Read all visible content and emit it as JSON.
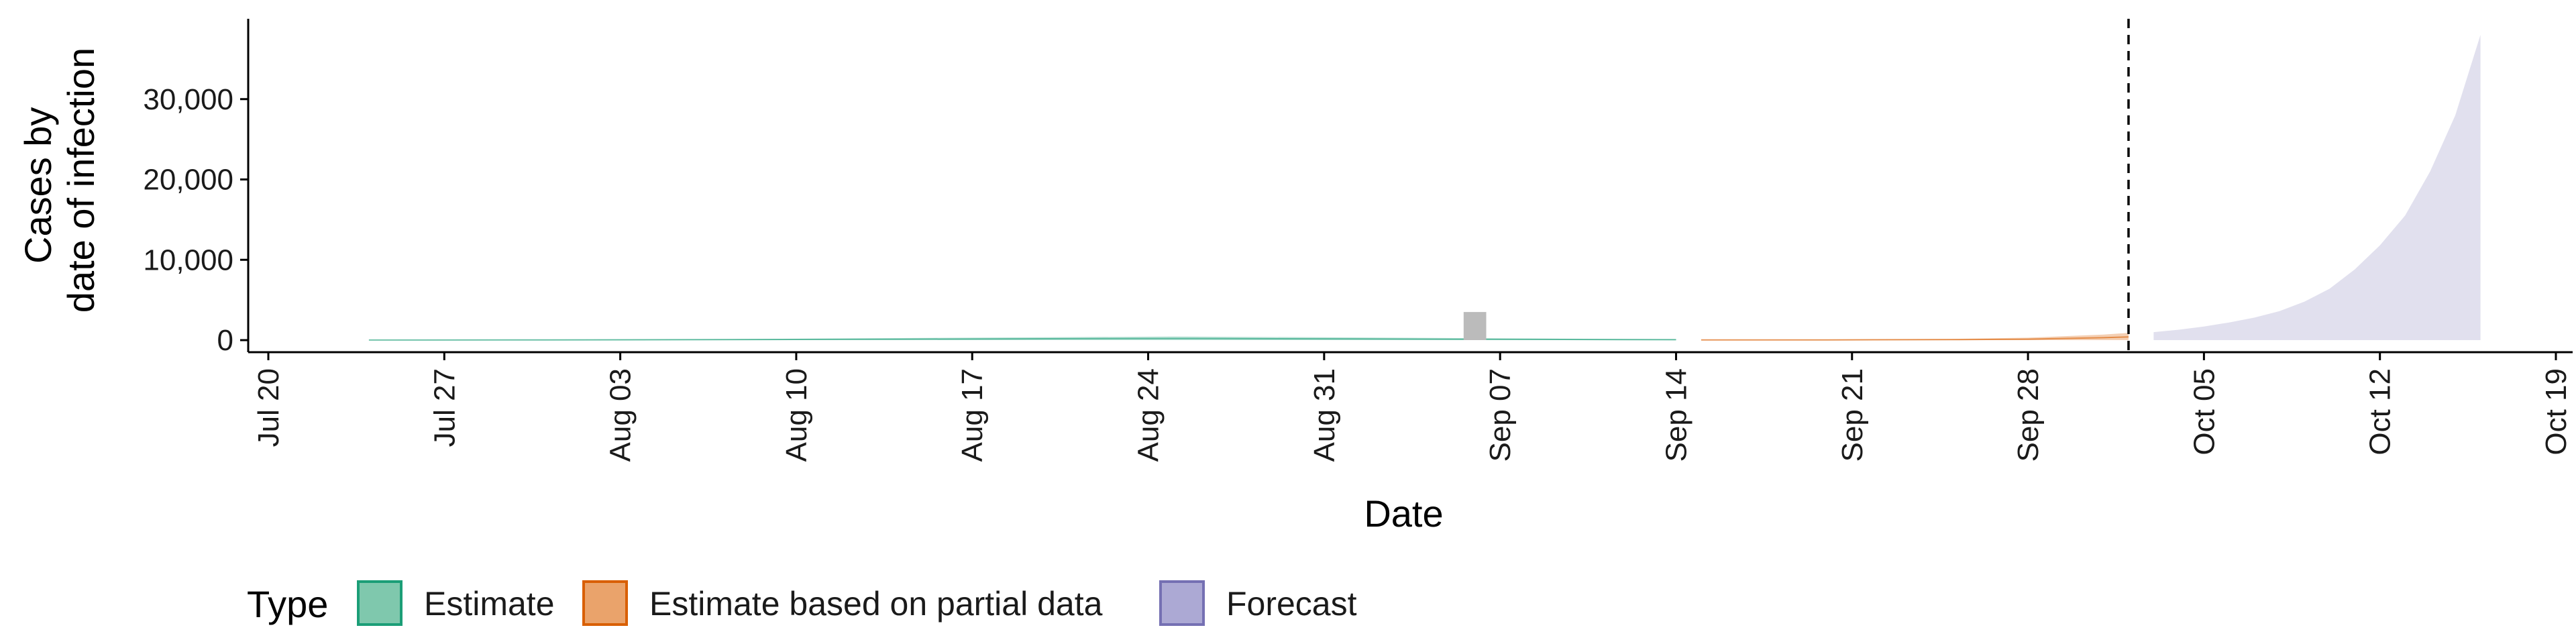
{
  "chart_data": {
    "type": "area",
    "xlabel": "Date",
    "ylabel_lines": [
      "Cases by",
      "date of infection"
    ],
    "x_ticks": [
      "Jul 20",
      "Jul 27",
      "Aug 03",
      "Aug 10",
      "Aug 17",
      "Aug 24",
      "Aug 31",
      "Sep 07",
      "Sep 14",
      "Sep 21",
      "Sep 28",
      "Oct 05",
      "Oct 12",
      "Oct 19"
    ],
    "x_tick_dates": [
      "2020-07-20",
      "2020-07-27",
      "2020-08-03",
      "2020-08-10",
      "2020-08-17",
      "2020-08-24",
      "2020-08-31",
      "2020-09-07",
      "2020-09-14",
      "2020-09-21",
      "2020-09-28",
      "2020-10-05",
      "2020-10-12",
      "2020-10-19"
    ],
    "y_ticks": [
      0,
      10000,
      20000,
      30000
    ],
    "y_tick_labels": [
      "0",
      "10,000",
      "20,000",
      "30,000"
    ],
    "xlim": [
      "2020-07-20",
      "2020-10-19"
    ],
    "ylim": [
      -1500,
      40000
    ],
    "grid": false,
    "vline_date": "2020-10-02",
    "reported_cases": [
      {
        "date": "2020-09-06",
        "value": 3500
      }
    ],
    "series": [
      {
        "name": "Estimate",
        "color": "#1b9e77",
        "x": [
          "2020-07-24",
          "2020-07-31",
          "2020-08-07",
          "2020-08-14",
          "2020-08-21",
          "2020-08-25",
          "2020-08-31",
          "2020-09-07",
          "2020-09-14"
        ],
        "lower": [
          0,
          0,
          0,
          0,
          0,
          0,
          0,
          0,
          0
        ],
        "upper": [
          30,
          60,
          120,
          250,
          380,
          450,
          350,
          220,
          120
        ],
        "median": [
          10,
          30,
          60,
          120,
          180,
          200,
          160,
          100,
          50
        ]
      },
      {
        "name": "Estimate based on partial data",
        "color": "#d95f02",
        "x": [
          "2020-09-15",
          "2020-09-20",
          "2020-09-25",
          "2020-09-28",
          "2020-10-01",
          "2020-10-02"
        ],
        "lower": [
          0,
          0,
          0,
          0,
          0,
          0
        ],
        "upper": [
          50,
          80,
          150,
          300,
          700,
          900
        ],
        "median": [
          20,
          30,
          60,
          120,
          300,
          400
        ]
      },
      {
        "name": "Forecast",
        "color": "#7570b3",
        "x": [
          "2020-10-03",
          "2020-10-04",
          "2020-10-05",
          "2020-10-06",
          "2020-10-07",
          "2020-10-08",
          "2020-10-09",
          "2020-10-10",
          "2020-10-11",
          "2020-10-12",
          "2020-10-13",
          "2020-10-14",
          "2020-10-15",
          "2020-10-16"
        ],
        "lower": [
          0,
          0,
          0,
          0,
          0,
          0,
          0,
          0,
          0,
          0,
          0,
          0,
          0,
          0
        ],
        "upper": [
          1000,
          1300,
          1700,
          2200,
          2800,
          3600,
          4800,
          6400,
          8800,
          11800,
          15500,
          21000,
          28000,
          38000
        ]
      }
    ]
  },
  "legend": {
    "title": "Type",
    "items": [
      {
        "label": "Estimate",
        "fill": "#7fc8ad",
        "stroke": "#1b9e77"
      },
      {
        "label": "Estimate based on partial data",
        "fill": "#eaa36b",
        "stroke": "#d95f02"
      },
      {
        "label": "Forecast",
        "fill": "#aca9d4",
        "stroke": "#7570b3"
      }
    ]
  },
  "colors": {
    "reported_bar": "#bbbbbb",
    "axis": "#000000"
  }
}
